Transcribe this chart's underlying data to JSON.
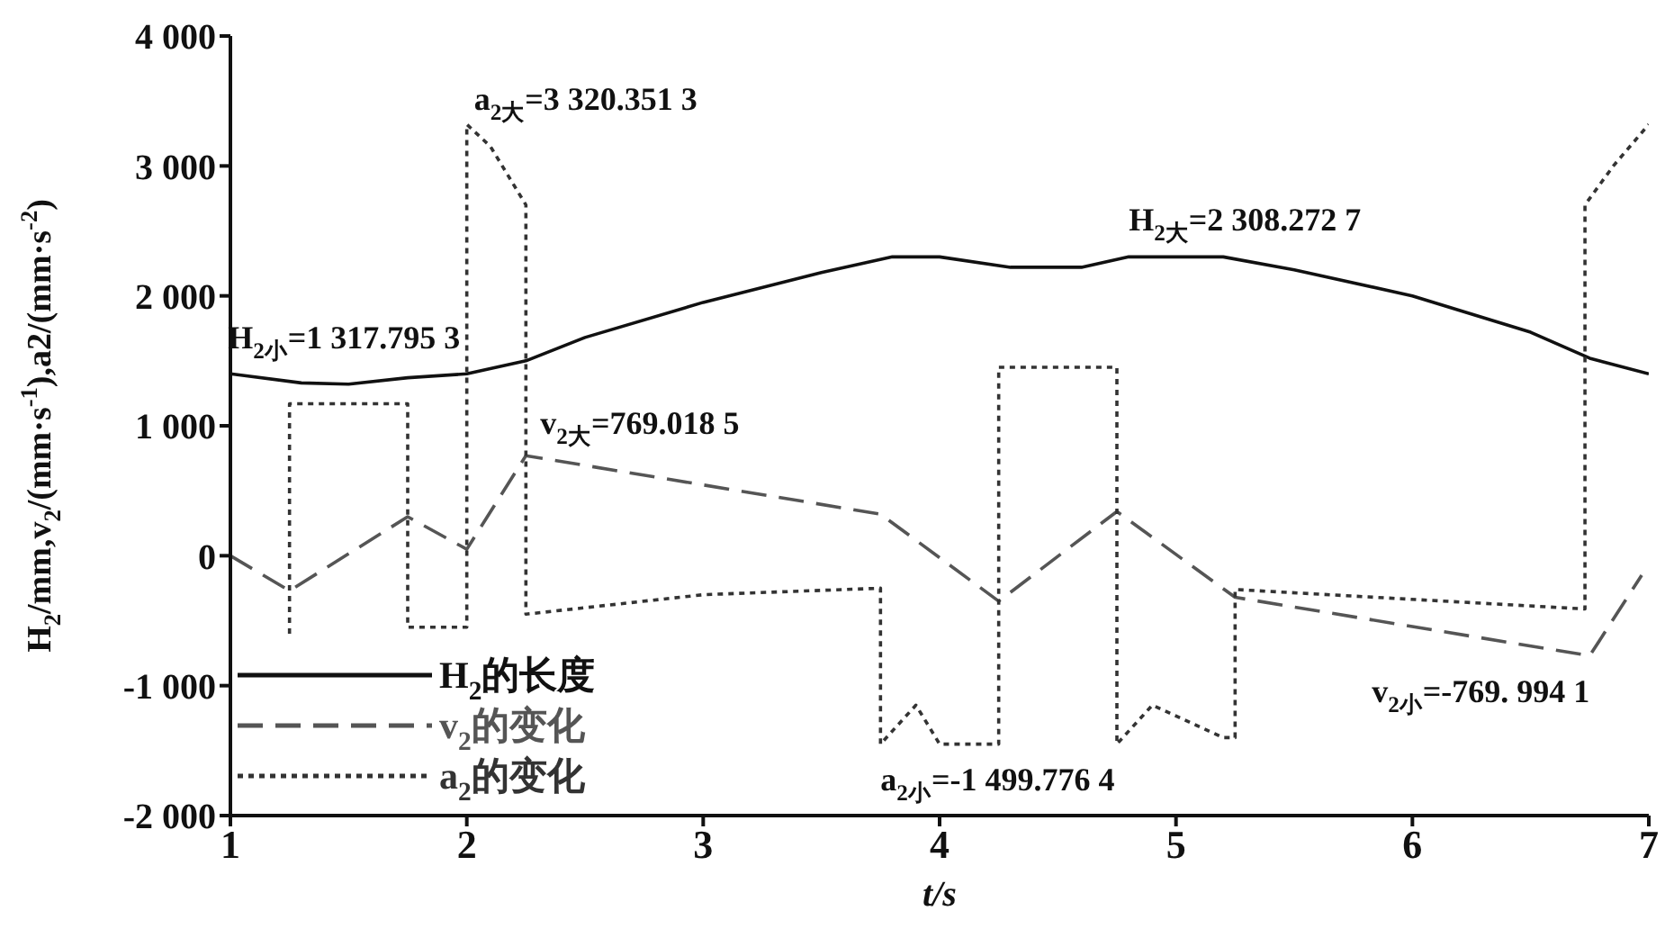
{
  "chart_data": {
    "type": "line",
    "xlabel": "t/s",
    "ylabel": "H$_{2}$/mm,v$_{2}$/(mm·s$^{-1}$),a2/(mm·s$^{-2}$)",
    "xlim": [
      1,
      7
    ],
    "xticks": [
      1,
      2,
      3,
      4,
      5,
      6,
      7
    ],
    "ylim": [
      -2000,
      4000
    ],
    "yticks": [
      {
        "value": -2000,
        "label": "-2 000"
      },
      {
        "value": -1000,
        "label": "-1 000"
      },
      0,
      {
        "value": 1000,
        "label": "1 000"
      },
      {
        "value": 2000,
        "label": "2 000"
      },
      {
        "value": 3000,
        "label": "3 000"
      },
      {
        "value": 4000,
        "label": "4 000"
      }
    ],
    "grid": false,
    "legend": "bottom left",
    "marker": "none",
    "series": [
      {
        "name": "H$_{2}$的长度",
        "color": "#111111",
        "line_style": "solid",
        "x": [
          1,
          1.3,
          1.5,
          1.75,
          2,
          2.25,
          2.5,
          3,
          3.5,
          3.8,
          4,
          4.3,
          4.6,
          4.8,
          5.2,
          5.5,
          6,
          6.5,
          6.75,
          7
        ],
        "values": [
          1400,
          1330,
          1320,
          1370,
          1400,
          1500,
          1680,
          1950,
          2180,
          2300,
          2300,
          2220,
          2220,
          2300,
          2300,
          2200,
          2000,
          1720,
          1520,
          1400
        ]
      },
      {
        "name": "v$_{2}$的变化",
        "color": "#555555",
        "line_style": "dashed",
        "x": [
          1,
          1.25,
          1.75,
          2,
          2.25,
          3.75,
          4.25,
          4.75,
          5.25,
          6.75,
          6.97
        ],
        "values": [
          0,
          -270,
          300,
          50,
          770,
          320,
          -350,
          340,
          -320,
          -770,
          -150
        ]
      },
      {
        "name": "a$_{2}$的变化",
        "color": "#333333",
        "line_style": "dotted",
        "x": [
          1.25,
          1.25,
          1.75,
          1.75,
          2,
          2,
          2.1,
          2.25,
          2.25,
          2.5,
          3,
          3.75,
          3.75,
          3.9,
          4,
          4.25,
          4.25,
          4.75,
          4.75,
          4.9,
          5.2,
          5.25,
          5.25,
          6.73,
          6.73,
          6.85,
          7
        ],
        "values": [
          -600,
          1170,
          1170,
          -550,
          -550,
          3320,
          3150,
          2700,
          -450,
          -400,
          -300,
          -250,
          -1450,
          -1150,
          -1450,
          -1450,
          1450,
          1450,
          -1450,
          -1150,
          -1400,
          -1400,
          -260,
          -410,
          2700,
          3000,
          3320
        ]
      }
    ],
    "annotations": [
      {
        "text": "a$_{2大}$=3 320.351 3",
        "x": 2,
        "y": 3320
      },
      {
        "text": "H$_{2小}$=1 317.795 3",
        "x": 1.5,
        "y": 1317.8
      },
      {
        "text": "v$_{2大}$=769.018 5",
        "x": 2.25,
        "y": 769
      },
      {
        "text": "H$_{2大}$=2 308.272 7",
        "x": 4.8,
        "y": 2308
      },
      {
        "text": "a$_{2小}$=-1 499.776 4",
        "x": 3.75,
        "y": -1500
      },
      {
        "text": "v$_{2小}$=-769. 994 1",
        "x": 6.75,
        "y": -770
      }
    ]
  }
}
